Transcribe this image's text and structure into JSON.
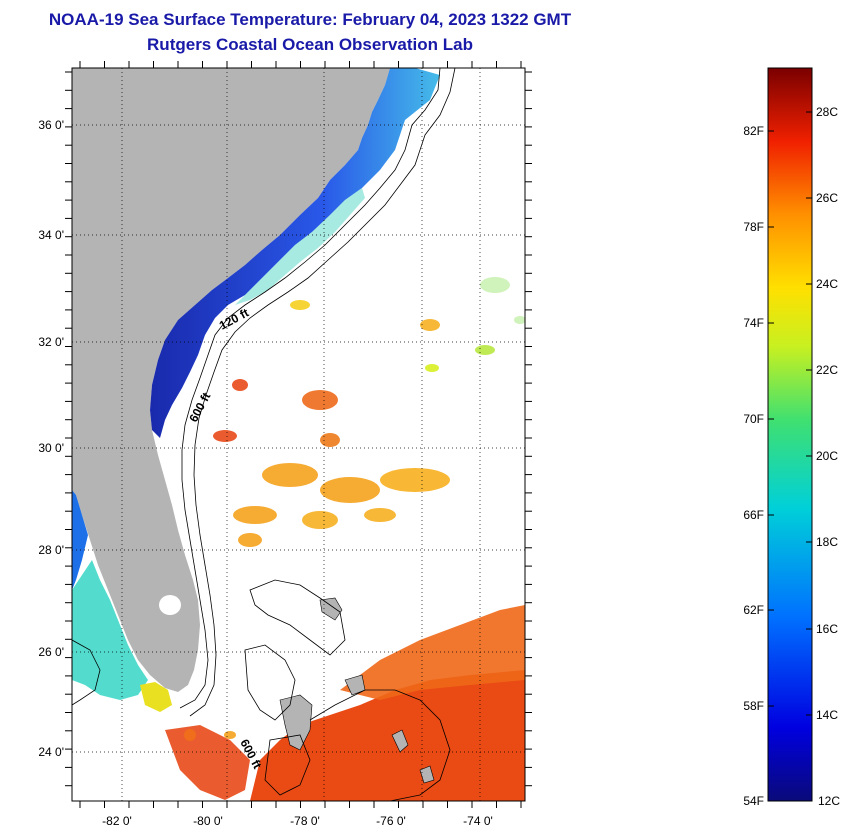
{
  "header": {
    "title": "NOAA-19 Sea Surface Temperature:  February 04, 2023 1322 GMT",
    "subtitle": "Rutgers Coastal Ocean Observation Lab"
  },
  "map": {
    "lat_ticks": [
      "36 0'",
      "34 0'",
      "32 0'",
      "30 0'",
      "28 0'",
      "26 0'",
      "24 0'"
    ],
    "lon_ticks": [
      "-82 0'",
      "-80 0'",
      "-78 0'",
      "-76 0'",
      "-74 0'"
    ],
    "contour_labels": [
      "120 ft",
      "600 ft",
      "600 ft"
    ],
    "colors": {
      "land": "#b4b4b4",
      "ocean_bg": "#ffffff",
      "cold": "#1a2fd6",
      "warm": "#e9521a"
    }
  },
  "colorbar": {
    "fahrenheit_labels": [
      "82F",
      "78F",
      "74F",
      "70F",
      "66F",
      "62F",
      "58F",
      "54F"
    ],
    "celsius_labels": [
      "28C",
      "26C",
      "24C",
      "22C",
      "20C",
      "18C",
      "16C",
      "14C",
      "12C"
    ]
  }
}
